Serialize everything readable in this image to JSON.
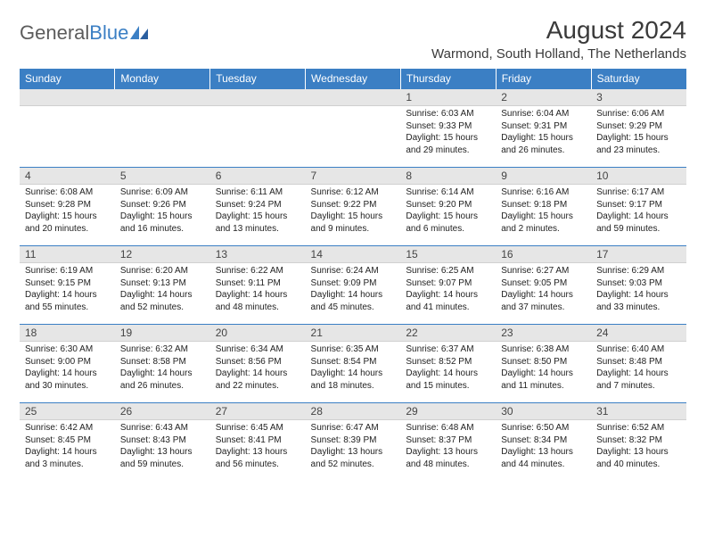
{
  "brand": {
    "part1": "General",
    "part2": "Blue"
  },
  "title": "August 2024",
  "location": "Warmond, South Holland, The Netherlands",
  "colors": {
    "header_bg": "#3b7fc4",
    "header_text": "#ffffff",
    "daynum_bg": "#e6e6e6",
    "border": "#3b7fc4",
    "brand_gray": "#5c5c5c",
    "brand_blue": "#3b7fc4"
  },
  "day_names": [
    "Sunday",
    "Monday",
    "Tuesday",
    "Wednesday",
    "Thursday",
    "Friday",
    "Saturday"
  ],
  "weeks": [
    [
      {
        "empty": true
      },
      {
        "empty": true
      },
      {
        "empty": true
      },
      {
        "empty": true
      },
      {
        "n": "1",
        "sr": "Sunrise: 6:03 AM",
        "ss": "Sunset: 9:33 PM",
        "dl1": "Daylight: 15 hours",
        "dl2": "and 29 minutes."
      },
      {
        "n": "2",
        "sr": "Sunrise: 6:04 AM",
        "ss": "Sunset: 9:31 PM",
        "dl1": "Daylight: 15 hours",
        "dl2": "and 26 minutes."
      },
      {
        "n": "3",
        "sr": "Sunrise: 6:06 AM",
        "ss": "Sunset: 9:29 PM",
        "dl1": "Daylight: 15 hours",
        "dl2": "and 23 minutes."
      }
    ],
    [
      {
        "n": "4",
        "sr": "Sunrise: 6:08 AM",
        "ss": "Sunset: 9:28 PM",
        "dl1": "Daylight: 15 hours",
        "dl2": "and 20 minutes."
      },
      {
        "n": "5",
        "sr": "Sunrise: 6:09 AM",
        "ss": "Sunset: 9:26 PM",
        "dl1": "Daylight: 15 hours",
        "dl2": "and 16 minutes."
      },
      {
        "n": "6",
        "sr": "Sunrise: 6:11 AM",
        "ss": "Sunset: 9:24 PM",
        "dl1": "Daylight: 15 hours",
        "dl2": "and 13 minutes."
      },
      {
        "n": "7",
        "sr": "Sunrise: 6:12 AM",
        "ss": "Sunset: 9:22 PM",
        "dl1": "Daylight: 15 hours",
        "dl2": "and 9 minutes."
      },
      {
        "n": "8",
        "sr": "Sunrise: 6:14 AM",
        "ss": "Sunset: 9:20 PM",
        "dl1": "Daylight: 15 hours",
        "dl2": "and 6 minutes."
      },
      {
        "n": "9",
        "sr": "Sunrise: 6:16 AM",
        "ss": "Sunset: 9:18 PM",
        "dl1": "Daylight: 15 hours",
        "dl2": "and 2 minutes."
      },
      {
        "n": "10",
        "sr": "Sunrise: 6:17 AM",
        "ss": "Sunset: 9:17 PM",
        "dl1": "Daylight: 14 hours",
        "dl2": "and 59 minutes."
      }
    ],
    [
      {
        "n": "11",
        "sr": "Sunrise: 6:19 AM",
        "ss": "Sunset: 9:15 PM",
        "dl1": "Daylight: 14 hours",
        "dl2": "and 55 minutes."
      },
      {
        "n": "12",
        "sr": "Sunrise: 6:20 AM",
        "ss": "Sunset: 9:13 PM",
        "dl1": "Daylight: 14 hours",
        "dl2": "and 52 minutes."
      },
      {
        "n": "13",
        "sr": "Sunrise: 6:22 AM",
        "ss": "Sunset: 9:11 PM",
        "dl1": "Daylight: 14 hours",
        "dl2": "and 48 minutes."
      },
      {
        "n": "14",
        "sr": "Sunrise: 6:24 AM",
        "ss": "Sunset: 9:09 PM",
        "dl1": "Daylight: 14 hours",
        "dl2": "and 45 minutes."
      },
      {
        "n": "15",
        "sr": "Sunrise: 6:25 AM",
        "ss": "Sunset: 9:07 PM",
        "dl1": "Daylight: 14 hours",
        "dl2": "and 41 minutes."
      },
      {
        "n": "16",
        "sr": "Sunrise: 6:27 AM",
        "ss": "Sunset: 9:05 PM",
        "dl1": "Daylight: 14 hours",
        "dl2": "and 37 minutes."
      },
      {
        "n": "17",
        "sr": "Sunrise: 6:29 AM",
        "ss": "Sunset: 9:03 PM",
        "dl1": "Daylight: 14 hours",
        "dl2": "and 33 minutes."
      }
    ],
    [
      {
        "n": "18",
        "sr": "Sunrise: 6:30 AM",
        "ss": "Sunset: 9:00 PM",
        "dl1": "Daylight: 14 hours",
        "dl2": "and 30 minutes."
      },
      {
        "n": "19",
        "sr": "Sunrise: 6:32 AM",
        "ss": "Sunset: 8:58 PM",
        "dl1": "Daylight: 14 hours",
        "dl2": "and 26 minutes."
      },
      {
        "n": "20",
        "sr": "Sunrise: 6:34 AM",
        "ss": "Sunset: 8:56 PM",
        "dl1": "Daylight: 14 hours",
        "dl2": "and 22 minutes."
      },
      {
        "n": "21",
        "sr": "Sunrise: 6:35 AM",
        "ss": "Sunset: 8:54 PM",
        "dl1": "Daylight: 14 hours",
        "dl2": "and 18 minutes."
      },
      {
        "n": "22",
        "sr": "Sunrise: 6:37 AM",
        "ss": "Sunset: 8:52 PM",
        "dl1": "Daylight: 14 hours",
        "dl2": "and 15 minutes."
      },
      {
        "n": "23",
        "sr": "Sunrise: 6:38 AM",
        "ss": "Sunset: 8:50 PM",
        "dl1": "Daylight: 14 hours",
        "dl2": "and 11 minutes."
      },
      {
        "n": "24",
        "sr": "Sunrise: 6:40 AM",
        "ss": "Sunset: 8:48 PM",
        "dl1": "Daylight: 14 hours",
        "dl2": "and 7 minutes."
      }
    ],
    [
      {
        "n": "25",
        "sr": "Sunrise: 6:42 AM",
        "ss": "Sunset: 8:45 PM",
        "dl1": "Daylight: 14 hours",
        "dl2": "and 3 minutes."
      },
      {
        "n": "26",
        "sr": "Sunrise: 6:43 AM",
        "ss": "Sunset: 8:43 PM",
        "dl1": "Daylight: 13 hours",
        "dl2": "and 59 minutes."
      },
      {
        "n": "27",
        "sr": "Sunrise: 6:45 AM",
        "ss": "Sunset: 8:41 PM",
        "dl1": "Daylight: 13 hours",
        "dl2": "and 56 minutes."
      },
      {
        "n": "28",
        "sr": "Sunrise: 6:47 AM",
        "ss": "Sunset: 8:39 PM",
        "dl1": "Daylight: 13 hours",
        "dl2": "and 52 minutes."
      },
      {
        "n": "29",
        "sr": "Sunrise: 6:48 AM",
        "ss": "Sunset: 8:37 PM",
        "dl1": "Daylight: 13 hours",
        "dl2": "and 48 minutes."
      },
      {
        "n": "30",
        "sr": "Sunrise: 6:50 AM",
        "ss": "Sunset: 8:34 PM",
        "dl1": "Daylight: 13 hours",
        "dl2": "and 44 minutes."
      },
      {
        "n": "31",
        "sr": "Sunrise: 6:52 AM",
        "ss": "Sunset: 8:32 PM",
        "dl1": "Daylight: 13 hours",
        "dl2": "and 40 minutes."
      }
    ]
  ]
}
